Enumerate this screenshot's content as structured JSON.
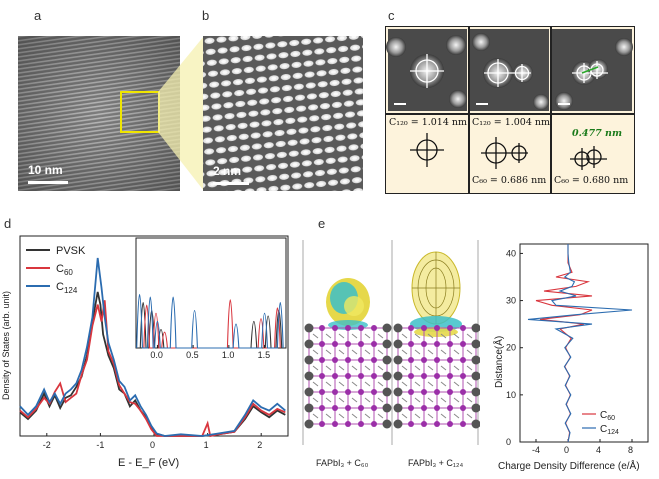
{
  "figure": {
    "panels": {
      "a": {
        "letter": "a",
        "scale_bar": "10 nm"
      },
      "b": {
        "letter": "b",
        "scale_bar": "2 nm"
      },
      "c": {
        "letter": "c",
        "cells": [
          {
            "label": "C₁₂₀ = 1.014 nm"
          },
          {
            "label": "C₁₂₀ = 1.004 nm",
            "label2": "C₆₀ = 0.686 nm"
          },
          {
            "label": "0.477 nm",
            "label2": "C₆₀ = 0.680 nm",
            "label_color": "#1a7a1a"
          }
        ]
      },
      "d": {
        "letter": "d"
      },
      "e": {
        "letter": "e",
        "struct_labels": [
          "FAPbI₃ + C₆₀",
          "FAPbI₃ + C₁₂₄"
        ]
      }
    }
  },
  "chart_data": [
    {
      "type": "line",
      "panel": "d",
      "xlabel": "E - E_F (eV)",
      "ylabel": "Density of States (arb. unit)",
      "xlim": [
        -2.5,
        2.5
      ],
      "xticks": [
        "-2",
        "-1",
        "0",
        "1",
        "2"
      ],
      "series": [
        {
          "name": "PVSK",
          "color": "#333333",
          "x": [
            -2.5,
            -2.35,
            -2.2,
            -2.05,
            -1.95,
            -1.85,
            -1.75,
            -1.65,
            -1.55,
            -1.45,
            -1.35,
            -1.25,
            -1.15,
            -1.05,
            -1.0,
            -0.95,
            -0.85,
            -0.75,
            -0.65,
            -0.55,
            -0.45,
            -0.35,
            -0.25,
            -0.15,
            -0.05,
            0.05,
            0.2,
            0.5,
            0.9,
            1.2,
            1.5,
            1.7,
            1.85,
            2.0,
            2.15,
            2.3,
            2.45
          ],
          "y": [
            0.28,
            0.2,
            0.3,
            0.5,
            0.35,
            0.48,
            0.33,
            0.45,
            0.48,
            0.58,
            0.7,
            0.95,
            1.35,
            1.7,
            1.55,
            1.2,
            0.95,
            0.8,
            0.55,
            0.5,
            0.35,
            0.42,
            0.3,
            0.22,
            0.1,
            0.02,
            0.0,
            0.0,
            0.0,
            0.02,
            0.05,
            0.2,
            0.35,
            0.28,
            0.22,
            0.3,
            0.25
          ]
        },
        {
          "name": "C60",
          "color": "#d9363e",
          "x": [
            -2.5,
            -2.35,
            -2.2,
            -2.05,
            -1.95,
            -1.85,
            -1.75,
            -1.65,
            -1.55,
            -1.45,
            -1.35,
            -1.25,
            -1.15,
            -1.05,
            -0.98,
            -0.92,
            -0.85,
            -0.75,
            -0.65,
            -0.55,
            -0.45,
            -0.35,
            -0.25,
            -0.15,
            -0.05,
            0.05,
            0.2,
            0.5,
            0.9,
            1.0,
            1.05,
            1.2,
            1.5,
            1.7,
            1.85,
            2.0,
            2.15,
            2.3,
            2.45
          ],
          "y": [
            0.3,
            0.22,
            0.32,
            0.45,
            0.38,
            0.52,
            0.62,
            0.4,
            0.45,
            0.5,
            0.72,
            0.9,
            1.3,
            1.55,
            1.35,
            1.6,
            1.0,
            0.85,
            0.6,
            0.5,
            0.4,
            0.38,
            0.3,
            0.2,
            0.08,
            0.0,
            0.0,
            0.0,
            0.0,
            0.15,
            0.0,
            0.02,
            0.05,
            0.22,
            0.38,
            0.3,
            0.25,
            0.32,
            0.28
          ]
        },
        {
          "name": "C124",
          "color": "#2b6cb0",
          "x": [
            -2.5,
            -2.35,
            -2.2,
            -2.05,
            -1.95,
            -1.85,
            -1.75,
            -1.65,
            -1.55,
            -1.45,
            -1.35,
            -1.25,
            -1.15,
            -1.05,
            -0.98,
            -0.92,
            -0.85,
            -0.75,
            -0.65,
            -0.55,
            -0.45,
            -0.35,
            -0.25,
            -0.15,
            -0.05,
            0.05,
            0.2,
            0.5,
            0.9,
            1.2,
            1.5,
            1.7,
            1.85,
            2.0,
            2.15,
            2.3,
            2.45
          ],
          "y": [
            0.35,
            0.25,
            0.35,
            0.55,
            0.4,
            0.5,
            0.38,
            0.5,
            0.55,
            0.62,
            0.78,
            1.05,
            1.4,
            2.1,
            1.75,
            1.4,
            1.1,
            0.9,
            0.65,
            0.58,
            0.42,
            0.48,
            0.35,
            0.25,
            0.12,
            0.03,
            0.0,
            0.02,
            0.0,
            0.03,
            0.06,
            0.25,
            0.42,
            0.34,
            0.3,
            0.38,
            0.3
          ]
        }
      ],
      "inset": {
        "xlim": [
          -0.3,
          1.8
        ],
        "xticks": [
          "0.0",
          "0.5",
          "1.0",
          "1.5"
        ]
      }
    },
    {
      "type": "line",
      "panel": "e",
      "xlabel": "Charge Density Difference (e/Å)",
      "ylabel": "Distance(Å)",
      "xlim": [
        -6,
        10
      ],
      "ylim": [
        0,
        42
      ],
      "xticks": [
        "-4",
        "0",
        "4",
        "8"
      ],
      "yticks": [
        "0",
        "10",
        "20",
        "30",
        "40"
      ],
      "series": [
        {
          "name": "C60",
          "color": "#d9363e",
          "y": [
            0,
            2,
            4,
            6,
            8,
            10,
            12,
            14,
            16,
            18,
            20,
            22,
            24,
            25,
            26,
            27,
            28,
            29,
            30,
            31,
            32,
            33,
            34,
            35,
            36,
            38,
            40,
            42
          ],
          "x": [
            0.0,
            0.2,
            -0.3,
            0.3,
            -0.2,
            0.3,
            -0.3,
            0.2,
            -0.4,
            0.3,
            -0.3,
            0.4,
            -1.0,
            2.0,
            -3.5,
            1.5,
            3.0,
            -2.0,
            -4.0,
            3.0,
            -3.0,
            1.0,
            2.5,
            -1.5,
            0.5,
            0.0,
            0.0,
            0.0
          ]
        },
        {
          "name": "C124",
          "color": "#2b6cb0",
          "y": [
            0,
            2,
            4,
            6,
            8,
            10,
            12,
            14,
            16,
            18,
            20,
            22,
            24,
            25,
            26,
            27,
            28,
            29,
            30,
            31,
            32,
            33,
            34,
            35,
            36,
            38,
            40,
            42
          ],
          "x": [
            0.0,
            0.25,
            -0.35,
            0.35,
            -0.25,
            0.35,
            -0.35,
            0.25,
            -0.45,
            0.35,
            -0.4,
            0.6,
            -1.5,
            3.0,
            -5.0,
            1.0,
            8.0,
            -1.5,
            -2.0,
            1.0,
            -1.0,
            0.5,
            0.8,
            -0.4,
            0.3,
            0.1,
            0.0,
            0.0
          ]
        }
      ]
    }
  ]
}
